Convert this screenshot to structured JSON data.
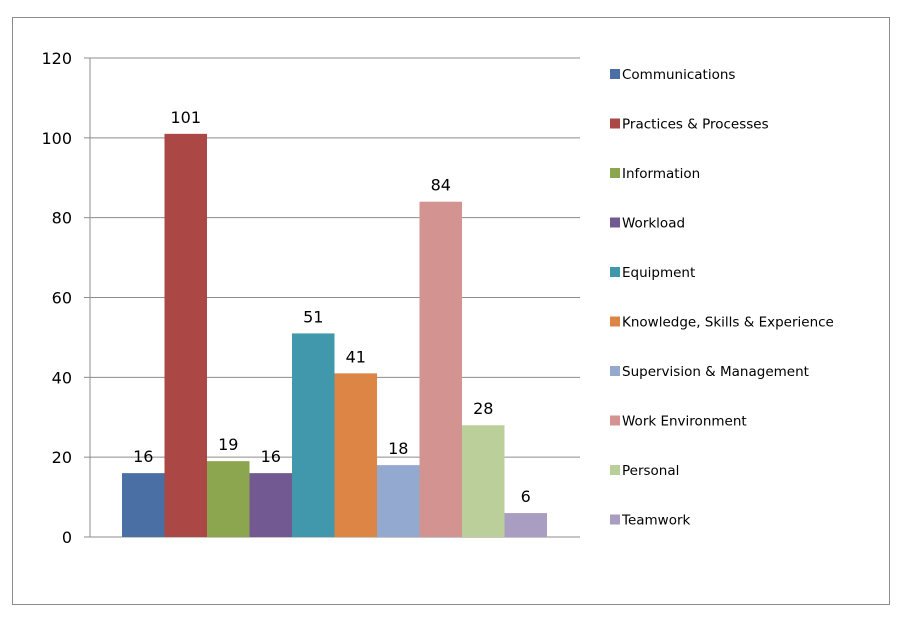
{
  "chart_data": {
    "type": "bar",
    "title": "",
    "xlabel": "",
    "ylabel": "",
    "ylim": [
      0,
      120
    ],
    "yticks": [
      0,
      20,
      40,
      60,
      80,
      100,
      120
    ],
    "grid": true,
    "legend_position": "right",
    "series": [
      {
        "name": "Communications",
        "value": 16,
        "color": "#4a6fa5"
      },
      {
        "name": "Practices & Processes",
        "value": 101,
        "color": "#ab4745"
      },
      {
        "name": "Information",
        "value": 19,
        "color": "#8ba64f"
      },
      {
        "name": "Workload",
        "value": 16,
        "color": "#735992"
      },
      {
        "name": "Equipment",
        "value": 51,
        "color": "#4198ac"
      },
      {
        "name": "Knowledge, Skills & Experience",
        "value": 41,
        "color": "#dc8544"
      },
      {
        "name": "Supervision & Management",
        "value": 18,
        "color": "#93a9d0"
      },
      {
        "name": "Work Environment",
        "value": 84,
        "color": "#d39391"
      },
      {
        "name": "Personal",
        "value": 28,
        "color": "#bbcf9a"
      },
      {
        "name": "Teamwork",
        "value": 6,
        "color": "#aa9dc2"
      }
    ]
  }
}
